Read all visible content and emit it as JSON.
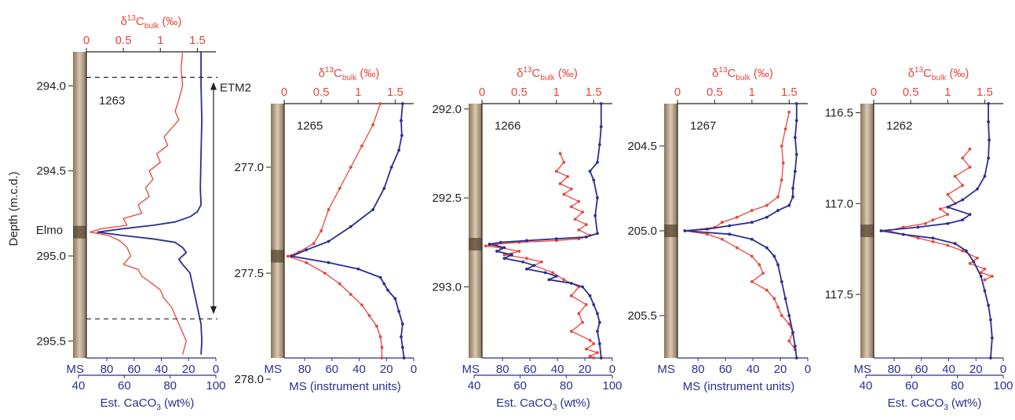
{
  "colors": {
    "red": "#e8463c",
    "blue": "#2b2f91",
    "axis": "#222222",
    "core_light": "#d9c8b4",
    "core_dark": "#8a7458"
  },
  "labels": {
    "d13c_axis": "δ13Cbulk (‰)",
    "d13c_main": "δ",
    "d13c_sup": "13",
    "d13c_C": "C",
    "d13c_sub": "bulk",
    "d13c_units": " (‰)",
    "ms_tag": "MS",
    "ms_units_title": "MS (instrument units)",
    "caco3_main": "Est. CaCO",
    "caco3_sub": "3",
    "caco3_units": " (wt%)",
    "depth_axis": "Depth (m.c.d.)",
    "elmo": "Elmo",
    "etm2": "ETM2"
  },
  "chart_data": [
    {
      "type": "line",
      "site": "1263",
      "ylim": [
        295.6,
        293.8
      ],
      "depth_ticks": [
        "294.0",
        "294.5",
        "295.0",
        "295.5"
      ],
      "top_ticks": [
        "0",
        "0.5",
        "1",
        "1.5"
      ],
      "top_lim": [
        0,
        1.75
      ],
      "ms_ticks": [
        "80",
        "60",
        "40",
        "20",
        "0"
      ],
      "ms_lim": [
        95,
        0
      ],
      "bottom_kind": "caco3",
      "caco3_ticks": [
        "40",
        "60",
        "80",
        "100"
      ],
      "series": [
        {
          "color_key": "red",
          "markers": false,
          "x": [
            1.3,
            1.28,
            1.3,
            1.25,
            1.2,
            1.25,
            1.15,
            1.05,
            1.1,
            0.95,
            1.0,
            0.85,
            0.9,
            0.8,
            0.85,
            0.7,
            0.75,
            0.5,
            0.55,
            0.2,
            0.05,
            0.3,
            0.45,
            0.55,
            0.6,
            0.5,
            0.7,
            0.75,
            0.85,
            1.0,
            1.05,
            1.15,
            1.2,
            1.25,
            1.3,
            1.35,
            1.3
          ],
          "y": [
            293.8,
            293.9,
            294.0,
            294.08,
            294.15,
            294.2,
            294.25,
            294.3,
            294.35,
            294.4,
            294.45,
            294.5,
            294.55,
            294.6,
            294.65,
            294.7,
            294.75,
            294.78,
            294.82,
            294.84,
            294.86,
            294.88,
            294.91,
            294.95,
            295.0,
            295.05,
            295.08,
            295.12,
            295.15,
            295.2,
            295.25,
            295.3,
            295.35,
            295.4,
            295.45,
            295.5,
            295.58
          ]
        },
        {
          "color_key": "blue",
          "markers": false,
          "x": [
            1.55,
            1.55,
            1.56,
            1.55,
            1.54,
            1.55,
            1.5,
            1.4,
            1.2,
            0.9,
            0.5,
            0.15,
            0.5,
            0.9,
            1.2,
            1.3,
            1.35,
            1.25,
            1.3,
            1.4,
            1.45,
            1.5,
            1.55,
            1.56,
            1.55
          ],
          "y": [
            293.8,
            294.0,
            294.2,
            294.4,
            294.6,
            294.7,
            294.74,
            294.77,
            294.8,
            294.82,
            294.84,
            294.86,
            294.88,
            294.9,
            294.92,
            294.95,
            294.98,
            295.02,
            295.05,
            295.1,
            295.2,
            295.3,
            295.4,
            295.5,
            295.58
          ]
        }
      ],
      "events": {
        "dashed_lines": [
          293.95,
          295.37
        ],
        "etm2_arrow": [
          293.95,
          295.37
        ]
      }
    },
    {
      "type": "line",
      "site": "1265",
      "ylim": [
        277.9,
        276.7
      ],
      "depth_ticks": [
        "277.0",
        "277.5",
        "278.0"
      ],
      "top_ticks": [
        "0",
        "0.5",
        "1",
        "1.5"
      ],
      "top_lim": [
        0,
        1.75
      ],
      "ms_ticks": [
        "80",
        "60",
        "40",
        "20",
        "0"
      ],
      "ms_lim": [
        95,
        0
      ],
      "bottom_kind": "ms",
      "series": [
        {
          "color_key": "red",
          "markers": true,
          "x": [
            1.3,
            1.2,
            1.05,
            0.9,
            0.75,
            0.6,
            0.5,
            0.4,
            0.2,
            0.05,
            0.3,
            0.55,
            0.75,
            0.9,
            1.05,
            1.15,
            1.25,
            1.3,
            1.32,
            1.32
          ],
          "y": [
            276.7,
            276.8,
            276.9,
            277.0,
            277.1,
            277.2,
            277.3,
            277.36,
            277.4,
            277.42,
            277.45,
            277.5,
            277.55,
            277.6,
            277.65,
            277.7,
            277.75,
            277.8,
            277.85,
            277.9
          ]
        },
        {
          "color_key": "blue",
          "markers": true,
          "x": [
            1.6,
            1.58,
            1.59,
            1.55,
            1.45,
            1.35,
            1.2,
            0.9,
            0.6,
            0.3,
            0.1,
            0.6,
            1.0,
            1.3,
            1.35,
            1.4,
            1.5,
            1.55,
            1.6,
            1.58,
            1.6,
            1.62
          ],
          "y": [
            276.7,
            276.78,
            276.85,
            276.92,
            277.0,
            277.1,
            277.2,
            277.28,
            277.35,
            277.39,
            277.42,
            277.45,
            277.48,
            277.52,
            277.55,
            277.58,
            277.62,
            277.68,
            277.74,
            277.8,
            277.85,
            277.9
          ]
        }
      ]
    },
    {
      "type": "line",
      "site": "1266",
      "ylim": [
        293.4,
        291.97
      ],
      "depth_ticks": [
        "292.0",
        "292.5",
        "293.0"
      ],
      "top_ticks": [
        "0",
        "0.5",
        "1",
        "1.5"
      ],
      "top_lim": [
        0,
        1.75
      ],
      "ms_ticks": [
        "80",
        "60",
        "40",
        "20",
        "0"
      ],
      "ms_lim": [
        95,
        0
      ],
      "bottom_kind": "caco3",
      "caco3_ticks": [
        "40",
        "60",
        "80",
        "100"
      ],
      "series": [
        {
          "color_key": "red",
          "markers": true,
          "x": [
            1.05,
            1.1,
            1.0,
            1.15,
            1.05,
            1.2,
            1.1,
            1.3,
            1.2,
            1.35,
            1.25,
            1.4,
            1.3,
            1.45,
            1.4,
            1.3,
            1.0,
            0.5,
            0.2,
            0.05,
            0.25,
            0.5,
            0.3,
            0.6,
            0.8,
            0.7,
            0.95,
            1.1,
            1.3,
            1.2,
            1.4,
            1.3,
            1.35,
            1.2,
            1.45,
            1.5,
            1.4,
            1.55,
            1.45,
            1.5
          ],
          "y": [
            292.25,
            292.3,
            292.35,
            292.38,
            292.42,
            292.45,
            292.48,
            292.52,
            292.55,
            292.58,
            292.62,
            292.65,
            292.68,
            292.71,
            292.72,
            292.73,
            292.74,
            292.75,
            292.76,
            292.77,
            292.78,
            292.8,
            292.82,
            292.84,
            292.86,
            292.88,
            292.92,
            292.96,
            293.0,
            293.05,
            293.1,
            293.15,
            293.2,
            293.25,
            293.3,
            293.32,
            293.35,
            293.37,
            293.39,
            293.4
          ]
        },
        {
          "color_key": "blue",
          "markers": true,
          "x": [
            1.6,
            1.6,
            1.58,
            1.55,
            1.45,
            1.5,
            1.55,
            1.52,
            1.55,
            1.4,
            1.0,
            0.6,
            0.25,
            0.1,
            0.3,
            0.2,
            0.4,
            0.3,
            0.55,
            0.7,
            0.6,
            0.85,
            1.0,
            0.9,
            1.2,
            1.35,
            1.45,
            1.5,
            1.55,
            1.58,
            1.55,
            1.58,
            1.6
          ],
          "y": [
            291.97,
            292.1,
            292.2,
            292.3,
            292.35,
            292.4,
            292.5,
            292.6,
            292.7,
            292.72,
            292.73,
            292.74,
            292.75,
            292.76,
            292.78,
            292.8,
            292.82,
            292.84,
            292.86,
            292.88,
            292.9,
            292.92,
            292.94,
            292.96,
            292.98,
            293.0,
            293.05,
            293.1,
            293.15,
            293.2,
            293.25,
            293.32,
            293.4
          ]
        }
      ]
    },
    {
      "type": "line",
      "site": "1267",
      "ylim": [
        205.75,
        204.25
      ],
      "depth_ticks": [
        "204.5",
        "205.0",
        "205.5"
      ],
      "top_ticks": [
        "0",
        "0.5",
        "1",
        "1.5"
      ],
      "top_lim": [
        0,
        1.75
      ],
      "ms_ticks": [
        "80",
        "60",
        "40",
        "20",
        "0"
      ],
      "ms_lim": [
        95,
        0
      ],
      "bottom_kind": "ms",
      "series": [
        {
          "color_key": "red",
          "markers": true,
          "x": [
            1.5,
            1.45,
            1.4,
            1.42,
            1.4,
            1.35,
            1.2,
            1.0,
            0.8,
            0.6,
            0.5,
            0.1,
            0.4,
            0.6,
            0.8,
            1.0,
            1.1,
            1.15,
            1.0,
            1.2,
            1.3,
            1.35,
            1.4,
            1.5,
            1.55,
            1.5,
            1.58
          ],
          "y": [
            204.3,
            204.4,
            204.5,
            204.6,
            204.7,
            204.8,
            204.85,
            204.88,
            204.92,
            204.95,
            204.98,
            205.0,
            205.02,
            205.05,
            205.1,
            205.15,
            205.2,
            205.25,
            205.3,
            205.35,
            205.4,
            205.45,
            205.5,
            205.55,
            205.6,
            205.65,
            205.7
          ]
        },
        {
          "color_key": "blue",
          "markers": true,
          "x": [
            1.6,
            1.6,
            1.58,
            1.6,
            1.58,
            1.55,
            1.55,
            1.5,
            1.35,
            1.2,
            1.0,
            0.7,
            0.4,
            0.1,
            0.7,
            1.0,
            1.2,
            1.3,
            1.35,
            1.4,
            1.45,
            1.5,
            1.55,
            1.58,
            1.6
          ],
          "y": [
            204.25,
            204.35,
            204.45,
            204.55,
            204.65,
            204.75,
            204.8,
            204.85,
            204.88,
            204.92,
            204.95,
            204.97,
            204.99,
            205.0,
            205.02,
            205.05,
            205.1,
            205.15,
            205.2,
            205.3,
            205.4,
            205.5,
            205.6,
            205.68,
            205.75
          ]
        }
      ]
    },
    {
      "type": "line",
      "site": "1262",
      "ylim": [
        117.85,
        116.45
      ],
      "depth_ticks": [
        "116.5",
        "117.0",
        "117.5"
      ],
      "top_ticks": [
        "0",
        "0.5",
        "1",
        "1.5"
      ],
      "top_lim": [
        0,
        1.75
      ],
      "ms_ticks": [
        "80",
        "60",
        "40",
        "20",
        "0"
      ],
      "ms_lim": [
        95,
        0
      ],
      "bottom_kind": "caco3",
      "caco3_ticks": [
        "40",
        "60",
        "80",
        "100"
      ],
      "series": [
        {
          "color_key": "red",
          "markers": true,
          "x": [
            1.3,
            1.2,
            1.3,
            1.1,
            1.2,
            1.0,
            1.1,
            0.9,
            1.0,
            0.8,
            0.7,
            0.4,
            0.2,
            0.4,
            0.6,
            0.8,
            1.0,
            1.2,
            1.4,
            1.3,
            1.5,
            1.45,
            1.6,
            1.5
          ],
          "y": [
            116.7,
            116.75,
            116.8,
            116.85,
            116.9,
            116.95,
            117.0,
            117.03,
            117.06,
            117.09,
            117.11,
            117.13,
            117.15,
            117.17,
            117.19,
            117.21,
            117.23,
            117.26,
            117.3,
            117.33,
            117.36,
            117.38,
            117.4,
            117.42
          ]
        },
        {
          "color_key": "blue",
          "markers": true,
          "x": [
            1.55,
            1.55,
            1.56,
            1.55,
            1.5,
            1.4,
            1.2,
            1.0,
            1.3,
            1.2,
            1.0,
            0.6,
            0.1,
            0.4,
            0.8,
            1.1,
            1.25,
            1.35,
            1.45,
            1.5,
            1.55,
            1.58,
            1.6,
            1.58
          ],
          "y": [
            116.45,
            116.55,
            116.65,
            116.75,
            116.85,
            116.92,
            116.98,
            117.02,
            117.06,
            117.09,
            117.11,
            117.13,
            117.15,
            117.17,
            117.19,
            117.22,
            117.26,
            117.32,
            117.4,
            117.48,
            117.56,
            117.64,
            117.74,
            117.85
          ]
        }
      ]
    }
  ]
}
